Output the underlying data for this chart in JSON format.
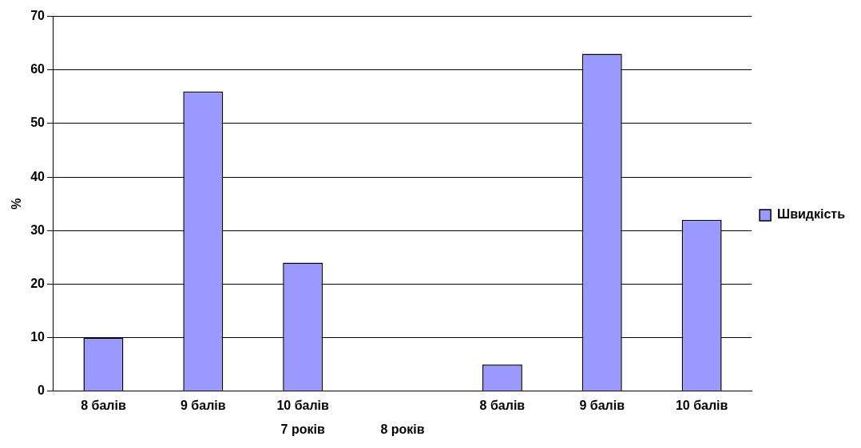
{
  "chart_data": {
    "type": "bar",
    "ylabel": "%",
    "categories": [
      "8 балів",
      "9 балів",
      "10 балів",
      null,
      "8 балів",
      "9 балів",
      "10 балів"
    ],
    "series": [
      {
        "name": "Швидкість",
        "color": "#9999ff",
        "values": [
          10,
          56,
          24,
          null,
          5,
          63,
          32
        ]
      }
    ],
    "ylim": [
      0,
      70
    ],
    "yticks": [
      0,
      10,
      20,
      30,
      40,
      50,
      60,
      70
    ],
    "grid": "y",
    "legend": "right",
    "annotations": [
      "7 років",
      "8 років"
    ]
  }
}
